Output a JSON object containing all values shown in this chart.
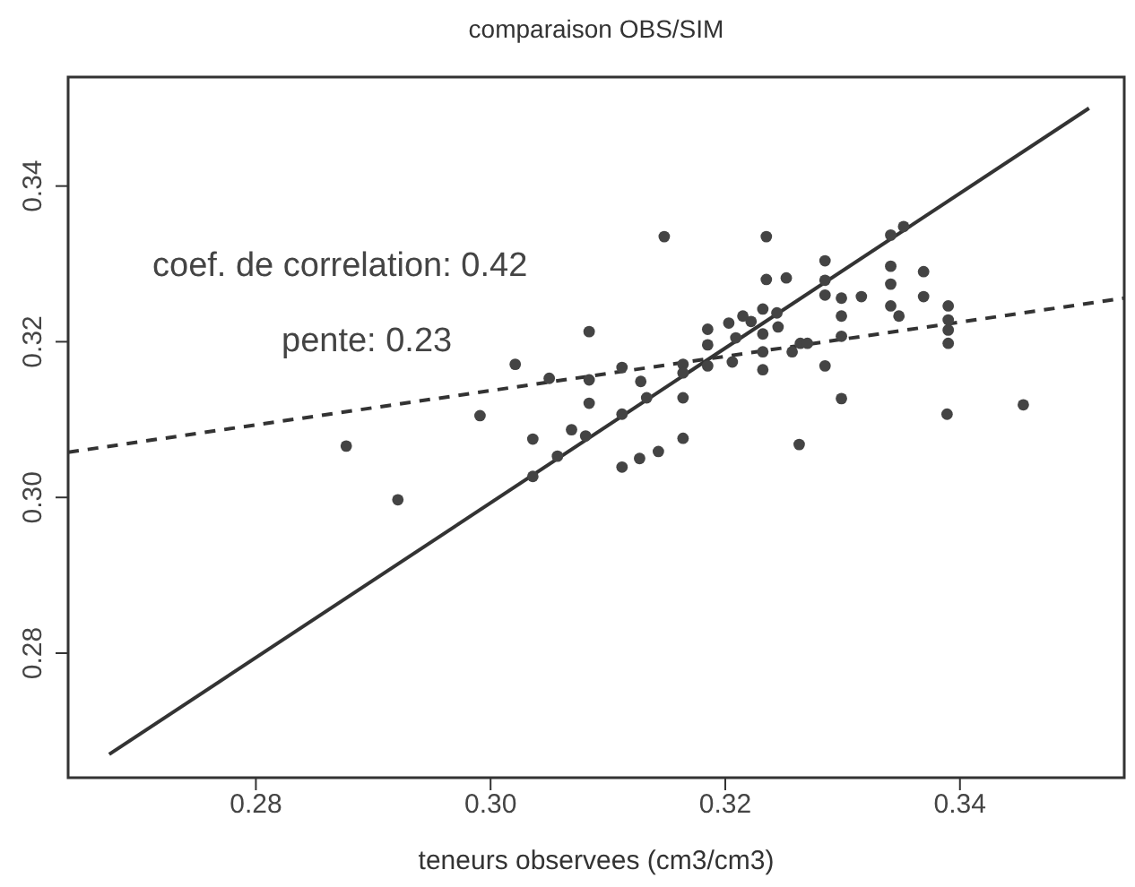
{
  "chart_data": {
    "type": "scatter",
    "title": "comparaison OBS/SIM",
    "xlabel": "teneurs observees (cm3/cm3)",
    "annotations": [
      "coef. de correlation: 0.42",
      "pente: 0.23"
    ],
    "xlim": [
      0.264,
      0.354
    ],
    "ylim": [
      0.264,
      0.354
    ],
    "xticks": [
      0.28,
      {
        "value": 0.3,
        "label": "0.30"
      },
      0.32,
      0.34
    ],
    "yticks": [
      0.28,
      {
        "value": 0.3,
        "label": "0.30"
      },
      0.32,
      0.34
    ],
    "grid": false,
    "legend": false,
    "series": [
      {
        "marker": "circle",
        "color": "#444444",
        "x": [
          0.3148,
          0.3235,
          0.3235,
          0.3252,
          0.3285,
          0.3285,
          0.3285,
          0.3341,
          0.3352,
          0.3341,
          0.3341,
          0.3341,
          0.3348,
          0.3369,
          0.3369,
          0.339,
          0.339,
          0.339,
          0.339,
          0.3389,
          0.3454,
          0.3299,
          0.3299,
          0.3299,
          0.3316,
          0.3299,
          0.3263,
          0.3244,
          0.3245,
          0.3222,
          0.3232,
          0.3232,
          0.3232,
          0.3257,
          0.3264,
          0.3285,
          0.3203,
          0.3185,
          0.3185,
          0.3185,
          0.3206,
          0.3209,
          0.3215,
          0.3164,
          0.3164,
          0.3164,
          0.3164,
          0.3143,
          0.3127,
          0.3112,
          0.3112,
          0.3112,
          0.3128,
          0.3133,
          0.3084,
          0.3084,
          0.3084,
          0.3081,
          0.3069,
          0.305,
          0.3057,
          0.3036,
          0.3036,
          0.3021,
          0.2991,
          0.2877,
          0.2921,
          0.3232,
          0.327
        ],
        "values": [
          0.3335,
          0.3335,
          0.328,
          0.3282,
          0.3304,
          0.3279,
          0.326,
          0.3337,
          0.3348,
          0.3297,
          0.3274,
          0.3246,
          0.3233,
          0.329,
          0.3258,
          0.3246,
          0.3228,
          0.3215,
          0.3198,
          0.3107,
          0.3119,
          0.3256,
          0.3233,
          0.3207,
          0.3258,
          0.3127,
          0.3068,
          0.3237,
          0.3219,
          0.3226,
          0.321,
          0.3187,
          0.3164,
          0.3187,
          0.3198,
          0.3169,
          0.3224,
          0.3216,
          0.3196,
          0.3169,
          0.3174,
          0.3205,
          0.3233,
          0.3171,
          0.316,
          0.3128,
          0.3076,
          0.3059,
          0.305,
          0.3039,
          0.3107,
          0.3167,
          0.3149,
          0.3128,
          0.3213,
          0.3151,
          0.3121,
          0.3079,
          0.3087,
          0.3153,
          0.3053,
          0.3075,
          0.3027,
          0.3171,
          0.3105,
          0.3066,
          0.2997,
          0.3242,
          0.3198
        ]
      },
      {
        "type": "line",
        "color": "#333333",
        "line_style": "solid",
        "marker": "none",
        "x": [
          0.2675,
          0.351
        ],
        "values": [
          0.267,
          0.35
        ]
      },
      {
        "type": "line",
        "color": "#333333",
        "line_style": "dashed",
        "marker": "none",
        "x": [
          0.264,
          0.354
        ],
        "values": [
          0.3058,
          0.3256
        ]
      }
    ]
  }
}
